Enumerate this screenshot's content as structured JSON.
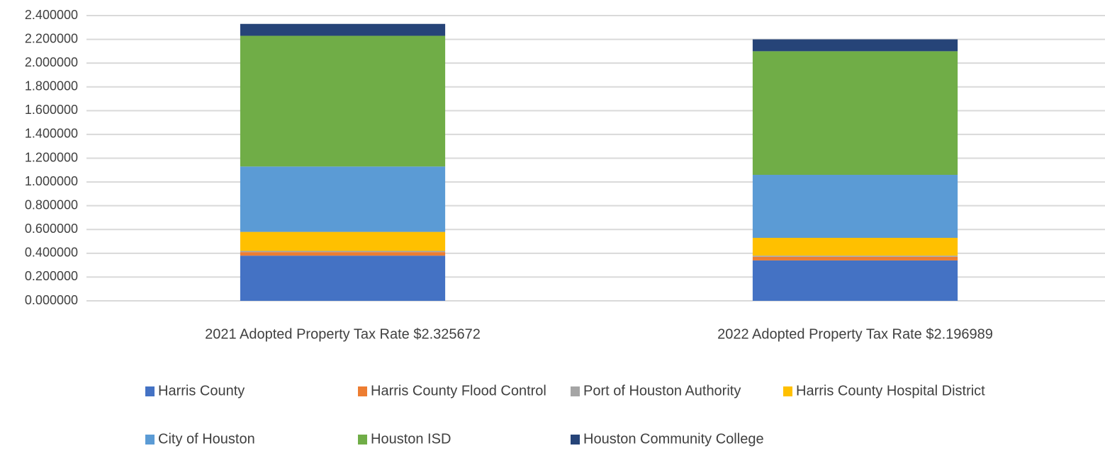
{
  "chart_data": {
    "type": "stacked_bar",
    "categories": [
      "2021 Adopted Property Tax Rate $2.325672",
      "2022 Adopted Property Tax Rate $2.196989"
    ],
    "series": [
      {
        "name": "Harris County",
        "color": "#4472c4",
        "values": [
          0.38,
          0.34
        ]
      },
      {
        "name": "Harris County Flood Control",
        "color": "#ed7d31",
        "values": [
          0.03,
          0.03
        ]
      },
      {
        "name": "Port of Houston Authority",
        "color": "#a5a5a5",
        "values": [
          0.01,
          0.01
        ]
      },
      {
        "name": "Harris County Hospital District",
        "color": "#ffc000",
        "values": [
          0.16,
          0.15
        ]
      },
      {
        "name": "City of Houston",
        "color": "#5b9bd5",
        "values": [
          0.55,
          0.53
        ]
      },
      {
        "name": "Houston ISD",
        "color": "#70ad47",
        "values": [
          1.1,
          1.04
        ]
      },
      {
        "name": "Houston Community College",
        "color": "#264478",
        "values": [
          0.1,
          0.1
        ]
      }
    ],
    "ylim": [
      0,
      2.4
    ],
    "yticks": [
      {
        "value": 0,
        "label": "0.000000"
      },
      {
        "value": 0.2,
        "label": "0.200000"
      },
      {
        "value": 0.4,
        "label": "0.400000"
      },
      {
        "value": 0.6,
        "label": "0.600000"
      },
      {
        "value": 0.8,
        "label": "0.800000"
      },
      {
        "value": 1,
        "label": "1.000000"
      },
      {
        "value": 1.2,
        "label": "1.200000"
      },
      {
        "value": 1.4,
        "label": "1.400000"
      },
      {
        "value": 1.6,
        "label": "1.600000"
      },
      {
        "value": 1.8,
        "label": "1.800000"
      },
      {
        "value": 2,
        "label": "2.000000"
      },
      {
        "value": 2.2,
        "label": "2.200000"
      },
      {
        "value": 2.4,
        "label": "2.400000"
      }
    ],
    "grid": true,
    "legend": "bottom"
  }
}
